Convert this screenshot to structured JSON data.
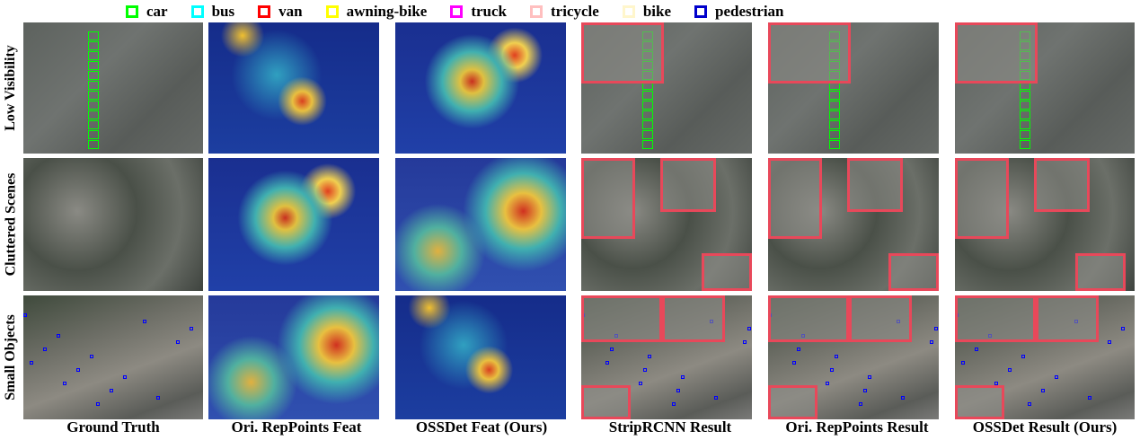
{
  "legend": [
    {
      "label": "car",
      "color": "#00ff00"
    },
    {
      "label": "bus",
      "color": "#00ffff"
    },
    {
      "label": "van",
      "color": "#ff0000"
    },
    {
      "label": "awning-bike",
      "color": "#ffff00"
    },
    {
      "label": "truck",
      "color": "#ff00ff"
    },
    {
      "label": "tricycle",
      "color": "#ffbfbf"
    },
    {
      "label": "bike",
      "color": "#fff6cc"
    },
    {
      "label": "pedestrian",
      "color": "#0000cc"
    }
  ],
  "rows": [
    "Low Visibility",
    "Cluttered Scenes",
    "Small Objects"
  ],
  "columns": [
    "Ground Truth",
    "Ori. RepPoints Feat",
    "OSSDet Feat (Ours)",
    "StripRCNN Result",
    "Ori. RepPoints Result",
    "OSSDet Result (Ours)"
  ],
  "colors": {
    "zoom_inset": "#e8485a"
  }
}
